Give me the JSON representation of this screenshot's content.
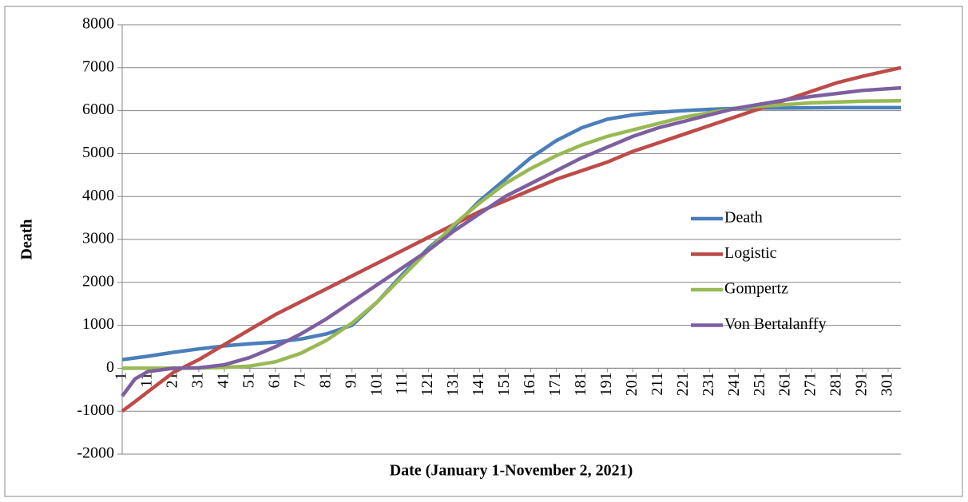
{
  "chart_data": {
    "type": "line",
    "x_label": "Date (January 1-November 2, 2021)",
    "y_label": "Death",
    "x": [
      1,
      6,
      11,
      21,
      31,
      41,
      51,
      61,
      71,
      81,
      91,
      101,
      111,
      121,
      131,
      141,
      151,
      161,
      171,
      181,
      191,
      201,
      211,
      221,
      231,
      241,
      251,
      261,
      271,
      281,
      291,
      306
    ],
    "series": [
      {
        "name": "Death",
        "color": "#4a7ebb",
        "values": [
          200,
          240,
          280,
          370,
          450,
          520,
          570,
          610,
          680,
          800,
          1000,
          1550,
          2200,
          2800,
          3300,
          3900,
          4400,
          4900,
          5300,
          5600,
          5800,
          5900,
          5960,
          6000,
          6030,
          6050,
          6060,
          6060,
          6065,
          6070,
          6070,
          6070
        ]
      },
      {
        "name": "Logistic",
        "color": "#be4b48",
        "values": [
          -1000,
          -780,
          -550,
          -100,
          200,
          550,
          900,
          1250,
          1550,
          1850,
          2150,
          2450,
          2750,
          3050,
          3350,
          3650,
          3900,
          4150,
          4400,
          4600,
          4800,
          5050,
          5250,
          5450,
          5650,
          5850,
          6050,
          6250,
          6450,
          6650,
          6800,
          7000
        ]
      },
      {
        "name": "Gompertz",
        "color": "#98b954",
        "values": [
          0,
          0,
          0,
          0,
          5,
          20,
          50,
          150,
          350,
          650,
          1050,
          1550,
          2150,
          2750,
          3350,
          3850,
          4300,
          4650,
          4950,
          5200,
          5400,
          5550,
          5700,
          5850,
          5950,
          6050,
          6100,
          6140,
          6180,
          6200,
          6220,
          6230
        ]
      },
      {
        "name": "Von Bertalanffy",
        "color": "#7d5fa0",
        "values": [
          -650,
          -250,
          -80,
          0,
          10,
          80,
          250,
          500,
          800,
          1150,
          1550,
          1950,
          2350,
          2750,
          3200,
          3600,
          4000,
          4300,
          4600,
          4900,
          5150,
          5400,
          5600,
          5750,
          5900,
          6050,
          6150,
          6250,
          6330,
          6400,
          6470,
          6530
        ]
      }
    ],
    "xlim": [
      1,
      306
    ],
    "xticks": [
      1,
      11,
      21,
      31,
      41,
      51,
      61,
      71,
      81,
      91,
      101,
      111,
      121,
      131,
      141,
      151,
      161,
      171,
      181,
      191,
      201,
      211,
      221,
      231,
      241,
      251,
      261,
      271,
      281,
      291,
      301
    ],
    "ylim": [
      -2000,
      8000
    ],
    "yticks": [
      -2000,
      -1000,
      0,
      1000,
      2000,
      3000,
      4000,
      5000,
      6000,
      7000,
      8000
    ],
    "grid": true,
    "legend": "right"
  }
}
